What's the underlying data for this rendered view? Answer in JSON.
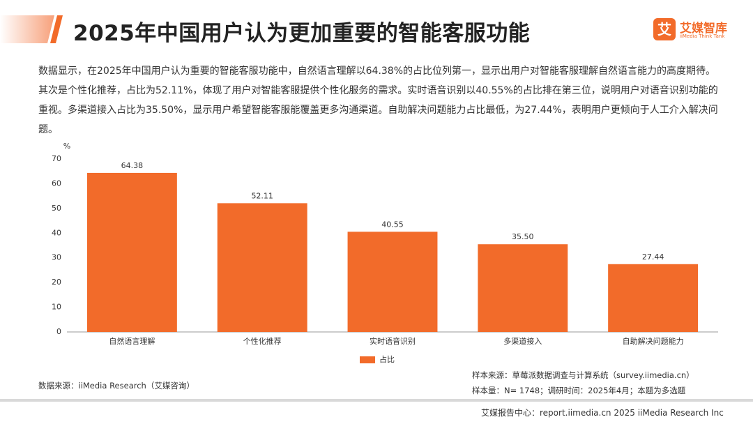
{
  "header": {
    "title": "2025年中国用户认为更加重要的智能客服功能",
    "logo_cn": "艾媒智库",
    "logo_en": "iiMedia Think Tank",
    "logo_icon": "艾"
  },
  "description": "数据显示，在2025年中国用户认为重要的智能客服功能中，自然语言理解以64.38%的占比位列第一，显示出用户对智能客服理解自然语言能力的高度期待。其次是个性化推荐，占比为52.11%，体现了用户对智能客服提供个性化服务的需求。实时语音识别以40.55%的占比排在第三位，说明用户对语音识别功能的重视。多渠道接入占比为35.50%，显示用户希望智能客服能覆盖更多沟通渠道。自助解决问题能力占比最低，为27.44%，表明用户更倾向于人工介入解决问题。",
  "chart_data": {
    "type": "bar",
    "y_unit": "%",
    "categories": [
      "自然语言理解",
      "个性化推荐",
      "实时语音识别",
      "多渠道接入",
      "自助解决问题能力"
    ],
    "series": [
      {
        "name": "占比",
        "color": "#f26b2a",
        "values": [
          64.38,
          52.11,
          40.55,
          35.5,
          27.44
        ],
        "value_labels": [
          "64.38",
          "52.11",
          "40.55",
          "35.50",
          "27.44"
        ]
      }
    ],
    "ylim": [
      0,
      70
    ],
    "yticks": [
      0,
      10,
      20,
      30,
      40,
      50,
      60,
      70
    ],
    "grid": false
  },
  "notes": {
    "source": "数据来源：iiMedia Research（艾媒咨询）",
    "sample_source": "样本来源：草莓派数据调查与计算系统（survey.iimedia.cn）",
    "sample_size": "样本量：N= 1748；调研时间：2025年4月；本题为多选题"
  },
  "footer": "艾媒报告中心：report.iimedia.cn  2025 iiMedia Research Inc"
}
